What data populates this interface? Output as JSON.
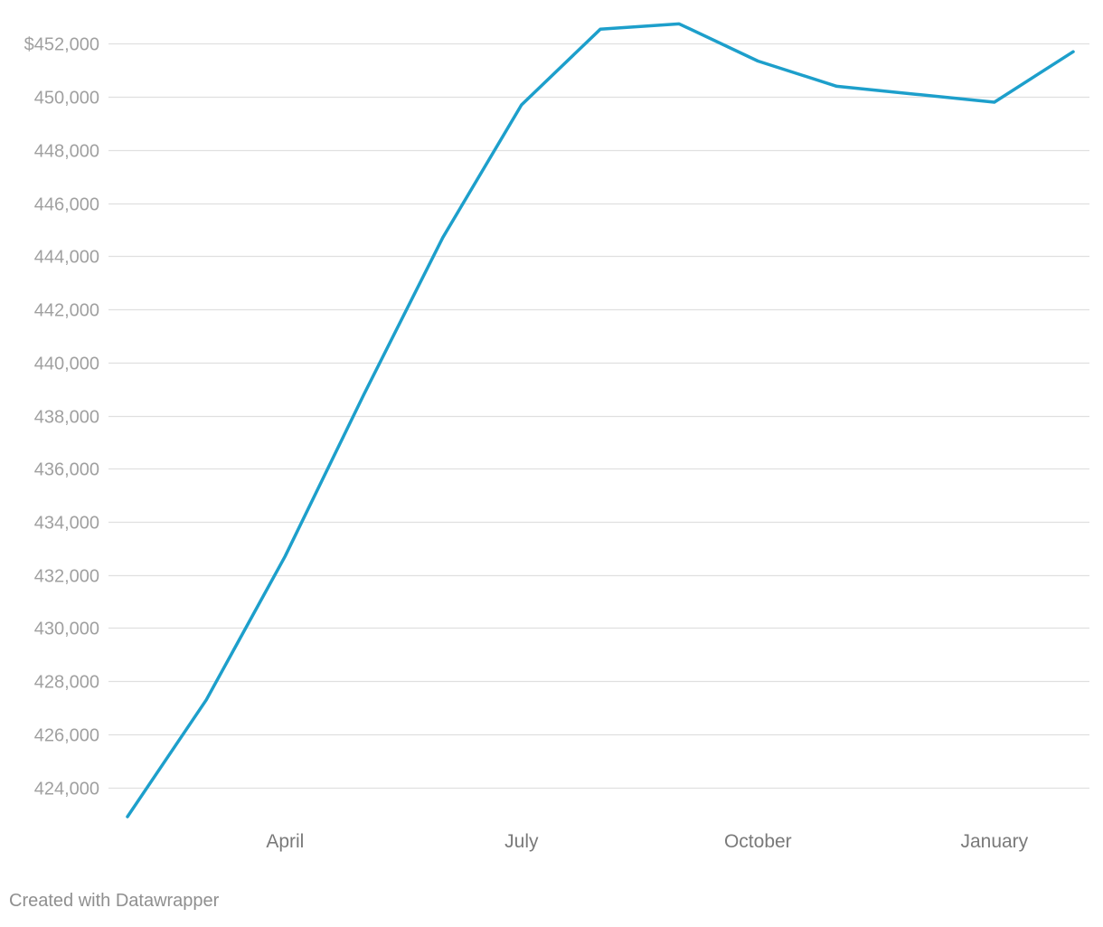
{
  "chart_data": {
    "type": "line",
    "x": [
      "2023-02",
      "2023-03",
      "2023-04",
      "2023-05",
      "2023-06",
      "2023-07",
      "2023-08",
      "2023-09",
      "2023-10",
      "2023-11",
      "2023-12",
      "2024-01",
      "2024-02"
    ],
    "series": [
      {
        "values": [
          422900,
          427300,
          432700,
          438800,
          444700,
          449700,
          452550,
          452750,
          451350,
          450400,
          450100,
          449800,
          451700
        ]
      }
    ],
    "y_ticks": [
      424000,
      426000,
      428000,
      430000,
      432000,
      434000,
      436000,
      438000,
      440000,
      442000,
      444000,
      446000,
      448000,
      450000,
      452000
    ],
    "y_tick_labels": [
      "424,000",
      "426,000",
      "428,000",
      "430,000",
      "432,000",
      "434,000",
      "436,000",
      "438,000",
      "440,000",
      "442,000",
      "444,000",
      "446,000",
      "448,000",
      "450,000",
      "$452,000"
    ],
    "x_ticks": [
      {
        "at": "2023-04",
        "label": "April"
      },
      {
        "at": "2023-07",
        "label": "July"
      },
      {
        "at": "2023-10",
        "label": "October"
      },
      {
        "at": "2024-01",
        "label": "January"
      }
    ],
    "ylim": [
      422900,
      452900
    ],
    "grid": true,
    "legend": "none",
    "line_color": "#1d9fcb",
    "title": "",
    "xlabel": "",
    "ylabel": ""
  },
  "credit": "Created with Datawrapper",
  "colors": {
    "line": "#1d9fcb",
    "grid": "#e0e0e0",
    "y_tick_text": "#a0a0a0",
    "x_tick_text": "#7a7a7a",
    "credit_text": "#8f8f8f"
  }
}
